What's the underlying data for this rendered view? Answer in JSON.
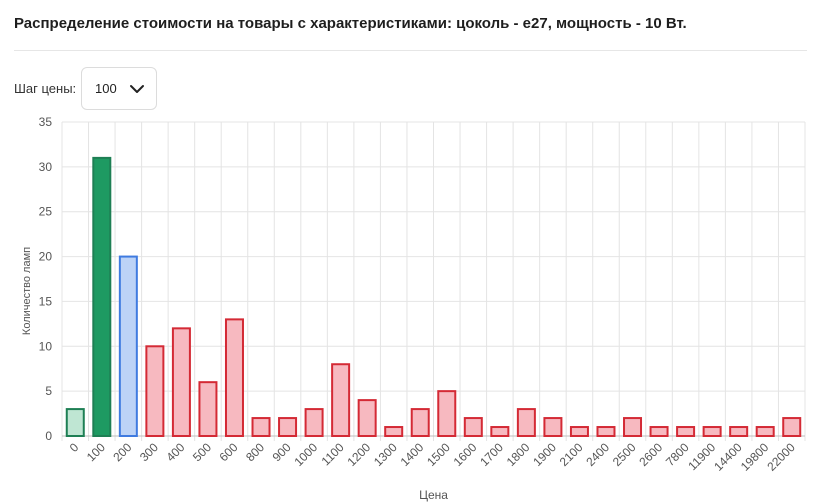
{
  "title": "Распределение стоимости на товары с характеристиками: цоколь - е27, мощность - 10 Вт.",
  "controls": {
    "step_label": "Шаг цены:",
    "step_value": "100"
  },
  "colors": {
    "green_fill": "#1e9a62",
    "green_light_fill": "#bfe6d3",
    "green_stroke": "#1e7f54",
    "blue_fill": "#bcd3f7",
    "blue_stroke": "#3f7be0",
    "red_fill": "#f7b9c0",
    "red_stroke": "#d42a35"
  },
  "chart_data": {
    "type": "bar",
    "xlabel": "Цена",
    "ylabel": "Количество ламп",
    "ylim": [
      0,
      35
    ],
    "yticks": [
      0,
      5,
      10,
      15,
      20,
      25,
      30,
      35
    ],
    "grid": true,
    "categories": [
      "0",
      "100",
      "200",
      "300",
      "400",
      "500",
      "600",
      "800",
      "900",
      "1000",
      "1100",
      "1200",
      "1300",
      "1400",
      "1500",
      "1600",
      "1700",
      "1800",
      "1900",
      "2100",
      "2400",
      "2500",
      "2600",
      "7800",
      "11900",
      "14400",
      "19800",
      "22000"
    ],
    "values": [
      3,
      31,
      20,
      10,
      12,
      6,
      13,
      2,
      2,
      3,
      8,
      4,
      1,
      3,
      5,
      2,
      1,
      3,
      2,
      1,
      1,
      2,
      1,
      1,
      1,
      1,
      1,
      2
    ],
    "bar_styles": [
      "green-light",
      "green",
      "blue",
      "red",
      "red",
      "red",
      "red",
      "red",
      "red",
      "red",
      "red",
      "red",
      "red",
      "red",
      "red",
      "red",
      "red",
      "red",
      "red",
      "red",
      "red",
      "red",
      "red",
      "red",
      "red",
      "red",
      "red",
      "red"
    ]
  }
}
